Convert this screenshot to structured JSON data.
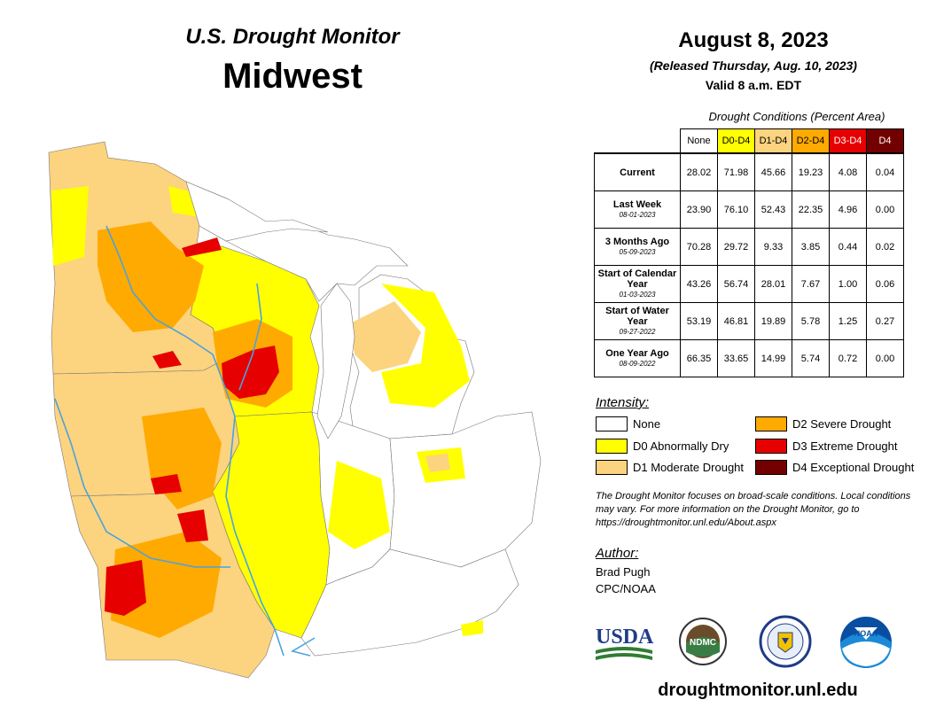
{
  "header": {
    "title": "U.S. Drought Monitor",
    "region": "Midwest",
    "date": "August 8, 2023",
    "released": "(Released Thursday, Aug. 10, 2023)",
    "valid": "Valid 8 a.m. EDT"
  },
  "table": {
    "caption": "Drought Conditions (Percent Area)",
    "columns": [
      {
        "label": "None",
        "bg": "#ffffff",
        "fg": "#000000"
      },
      {
        "label": "D0-D4",
        "bg": "#ffff00",
        "fg": "#000000"
      },
      {
        "label": "D1-D4",
        "bg": "#fcd37f",
        "fg": "#000000"
      },
      {
        "label": "D2-D4",
        "bg": "#ffaa00",
        "fg": "#000000"
      },
      {
        "label": "D3-D4",
        "bg": "#e60000",
        "fg": "#ffffff"
      },
      {
        "label": "D4",
        "bg": "#730000",
        "fg": "#ffffff"
      }
    ],
    "rows": [
      {
        "label": "Current",
        "date": "",
        "values": [
          "28.02",
          "71.98",
          "45.66",
          "19.23",
          "4.08",
          "0.04"
        ]
      },
      {
        "label": "Last Week",
        "date": "08-01-2023",
        "values": [
          "23.90",
          "76.10",
          "52.43",
          "22.35",
          "4.96",
          "0.00"
        ]
      },
      {
        "label": "3 Months Ago",
        "date": "05-09-2023",
        "values": [
          "70.28",
          "29.72",
          "9.33",
          "3.85",
          "0.44",
          "0.02"
        ]
      },
      {
        "label": "Start of Calendar Year",
        "date": "01-03-2023",
        "values": [
          "43.26",
          "56.74",
          "28.01",
          "7.67",
          "1.00",
          "0.06"
        ]
      },
      {
        "label": "Start of Water Year",
        "date": "09-27-2022",
        "values": [
          "53.19",
          "46.81",
          "19.89",
          "5.78",
          "1.25",
          "0.27"
        ]
      },
      {
        "label": "One Year Ago",
        "date": "08-09-2022",
        "values": [
          "66.35",
          "33.65",
          "14.99",
          "5.74",
          "0.72",
          "0.00"
        ]
      }
    ]
  },
  "legend": {
    "title": "Intensity:",
    "items": [
      {
        "label": "None",
        "color": "#ffffff"
      },
      {
        "label": "D0 Abnormally Dry",
        "color": "#ffff00"
      },
      {
        "label": "D1 Moderate Drought",
        "color": "#fcd37f"
      },
      {
        "label": "D2 Severe Drought",
        "color": "#ffaa00"
      },
      {
        "label": "D3 Extreme Drought",
        "color": "#e60000"
      },
      {
        "label": "D4 Exceptional Drought",
        "color": "#730000"
      }
    ]
  },
  "note": "The Drought Monitor focuses on broad-scale conditions. Local conditions may vary. For more information on the Drought Monitor, go to https://droughtmonitor.unl.edu/About.aspx",
  "author": {
    "title": "Author:",
    "name": "Brad Pugh",
    "org": "CPC/NOAA"
  },
  "logos": {
    "usda": "USDA",
    "ndmc": "NDMC",
    "noaa": "NOAA"
  },
  "website": "droughtmonitor.unl.edu",
  "colors": {
    "none": "#ffffff",
    "d0": "#ffff00",
    "d1": "#fcd37f",
    "d2": "#ffaa00",
    "d3": "#e60000",
    "d4": "#730000",
    "water": "#4aa3df"
  }
}
